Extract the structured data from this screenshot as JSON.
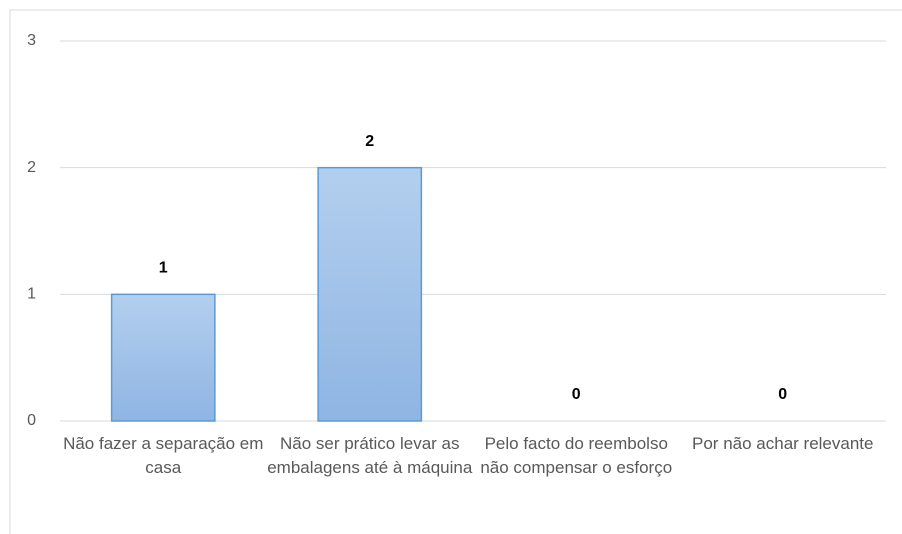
{
  "chart_data": {
    "type": "bar",
    "categories": [
      "Não fazer a separação em casa",
      "Não ser prático levar as embalagens até à máquina",
      "Pelo facto do reembolso não compensar o esforço",
      "Por não achar relevante"
    ],
    "values": [
      1,
      2,
      0,
      0
    ],
    "color": "#9dc0e8",
    "ylim": [
      0,
      3
    ],
    "yticks": [
      0,
      1,
      2,
      3
    ],
    "grid": true
  }
}
